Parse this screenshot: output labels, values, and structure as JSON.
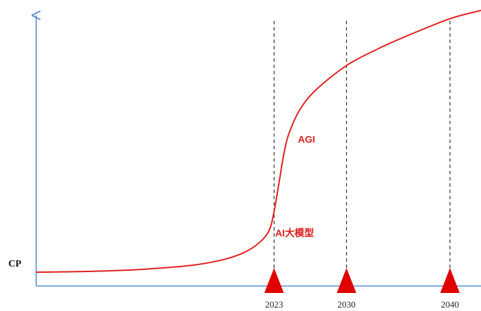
{
  "chart_data": {
    "type": "line",
    "title": "",
    "ylabel": "CP",
    "xlabel": "",
    "x_ticks": [
      "2023",
      "2030",
      "2040"
    ],
    "xlim": [
      2000,
      2043
    ],
    "ylim": [
      0,
      100
    ],
    "grid": false,
    "series": [
      {
        "color": "#e0201f",
        "points": [
          [
            2000,
            5.0
          ],
          [
            2005,
            5.3
          ],
          [
            2010,
            6.0
          ],
          [
            2015,
            7.5
          ],
          [
            2018,
            9.5
          ],
          [
            2020,
            12.0
          ],
          [
            2021.5,
            15.5
          ],
          [
            2022.5,
            20.0
          ],
          [
            2023.0,
            27.0
          ],
          [
            2023.5,
            38.0
          ],
          [
            2024.0,
            49.0
          ],
          [
            2024.5,
            56.0
          ],
          [
            2025.5,
            64.0
          ],
          [
            2027.0,
            71.0
          ],
          [
            2030.0,
            80.0
          ],
          [
            2033.0,
            86.0
          ],
          [
            2036.0,
            91.0
          ],
          [
            2040.0,
            97.0
          ],
          [
            2043.0,
            100.0
          ]
        ]
      }
    ],
    "markers": [
      {
        "x": 2023,
        "label": "2023"
      },
      {
        "x": 2030,
        "label": "2030"
      },
      {
        "x": 2040,
        "label": "2040"
      }
    ],
    "annotations": [
      {
        "text": "AGI",
        "x": 2025.3,
        "y": 52
      },
      {
        "text": "AI大模型",
        "x": 2023.1,
        "y": 18
      }
    ],
    "colors": {
      "curve": "#e0201f",
      "marker": "#e00000",
      "axis": "#5b8fd0",
      "dashed": "#333333"
    }
  }
}
